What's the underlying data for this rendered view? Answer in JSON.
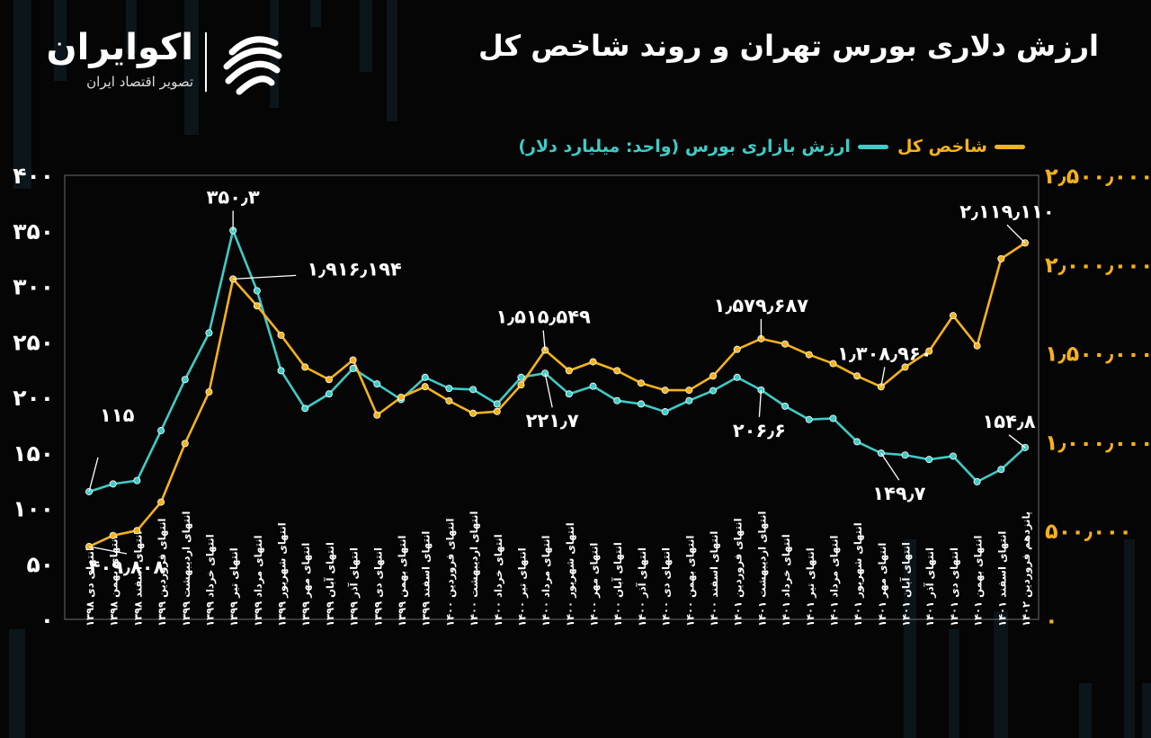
{
  "title": "ارزش دلاری بورس تهران و روند شاخص کل",
  "brand": {
    "name": "اکوایران",
    "tagline": "تصویر اقتصاد ایران"
  },
  "colors": {
    "index": "#F5B21A",
    "market_value": "#3FCBC6",
    "background": "#050505"
  },
  "legend": {
    "index_label": "شاخص کل",
    "market_label": "ارزش بازاری بورس (واحد: میلیارد دلار)"
  },
  "chart_data": {
    "type": "line",
    "categories": [
      "انتهای دی ۱۳۹۸",
      "انتهای بهمن ۱۳۹۸",
      "انتهای اسفند ۱۳۹۸",
      "انتهای فروردین ۱۳۹۹",
      "انتهای اردیبهشت ۱۳۹۹",
      "انتهای خرداد ۱۳۹۹",
      "انتهای تیر ۱۳۹۹",
      "انتهای مرداد ۱۳۹۹",
      "انتهای شهریور ۱۳۹۹",
      "انتهای مهر ۱۳۹۹",
      "انتهای آبان ۱۳۹۹",
      "انتهای آذر ۱۳۹۹",
      "انتهای دی ۱۳۹۹",
      "انتهای بهمن ۱۳۹۹",
      "انتهای اسفند ۱۳۹۹",
      "انتهای فروردین ۱۴۰۰",
      "انتهای اردیبهشت ۱۴۰۰",
      "انتهای خرداد ۱۴۰۰",
      "انتهای تیر ۱۴۰۰",
      "انتهای مرداد ۱۴۰۰",
      "انتهای شهریور ۱۴۰۰",
      "انتهای مهر ۱۴۰۰",
      "انتهای آبان ۱۴۰۰",
      "انتهای آذر ۱۴۰۰",
      "انتهای دی ۱۴۰۰",
      "انتهای بهمن ۱۴۰۰",
      "انتهای اسفند ۱۴۰۰",
      "انتهای فروردین ۱۴۰۱",
      "انتهای اردیبهشت ۱۴۰۱",
      "انتهای خرداد ۱۴۰۱",
      "انتهای تیر ۱۴۰۱",
      "انتهای مرداد ۱۴۰۱",
      "انتهای شهریور ۱۴۰۱",
      "انتهای مهر ۱۴۰۱",
      "انتهای آبان ۱۴۰۱",
      "انتهای آذر ۱۴۰۱",
      "انتهای دی ۱۴۰۱",
      "انتهای بهمن ۱۴۰۱",
      "انتهای اسفند ۱۴۰۱",
      "پانزدهم فروردین ۱۴۰۲"
    ],
    "series": [
      {
        "name": "ارزش بازاری بورس (واحد: میلیارد دلار)",
        "axis": "left",
        "values": [
          115,
          122,
          125,
          170,
          216,
          258,
          350.3,
          296,
          224,
          190,
          203,
          226,
          212,
          198,
          218,
          208,
          207,
          194,
          218,
          221.7,
          203,
          210,
          197,
          194,
          187,
          197,
          206,
          218,
          206.6,
          192,
          180,
          181,
          160,
          149.7,
          148,
          144,
          147,
          124,
          135,
          154.8
        ]
      },
      {
        "name": "شاخص کل",
        "axis": "right",
        "values": [
          409808,
          472000,
          500000,
          660000,
          990000,
          1280000,
          1916194,
          1765000,
          1600000,
          1420000,
          1350000,
          1460000,
          1150000,
          1250000,
          1310000,
          1230000,
          1160000,
          1170000,
          1320000,
          1515549,
          1400000,
          1450000,
          1400000,
          1330000,
          1290000,
          1290000,
          1370000,
          1520000,
          1579687,
          1550000,
          1490000,
          1440000,
          1370000,
          1308960,
          1420000,
          1510000,
          1710000,
          1540000,
          2030000,
          2119110
        ]
      }
    ],
    "left_axis": {
      "min": 0,
      "max": 400,
      "ticks": [
        "۰",
        "۵۰",
        "۱۰۰",
        "۱۵۰",
        "۲۰۰",
        "۲۵۰",
        "۳۰۰",
        "۳۵۰",
        "۴۰۰"
      ]
    },
    "right_axis": {
      "min": 0,
      "max": 2500000,
      "ticks": [
        "۰",
        "۵۰۰٫۰۰۰",
        "۱٫۰۰۰٫۰۰۰",
        "۱٫۵۰۰٫۰۰۰",
        "۲٫۰۰۰٫۰۰۰",
        "۲٫۵۰۰٫۰۰۰"
      ]
    },
    "annotations": [
      {
        "series": 0,
        "index": 0,
        "text": "۱۱۵"
      },
      {
        "series": 0,
        "index": 6,
        "text": "۳۵۰٫۳"
      },
      {
        "series": 0,
        "index": 19,
        "text": "۲۲۱٫۷"
      },
      {
        "series": 0,
        "index": 28,
        "text": "۲۰۶٫۶"
      },
      {
        "series": 0,
        "index": 33,
        "text": "۱۴۹٫۷"
      },
      {
        "series": 0,
        "index": 39,
        "text": "۱۵۴٫۸"
      },
      {
        "series": 1,
        "index": 0,
        "text": "۴۰۹٫۸۰۸"
      },
      {
        "series": 1,
        "index": 6,
        "text": "۱٫۹۱۶٫۱۹۴"
      },
      {
        "series": 1,
        "index": 19,
        "text": "۱٫۵۱۵٫۵۴۹"
      },
      {
        "series": 1,
        "index": 28,
        "text": "۱٫۵۷۹٫۶۸۷"
      },
      {
        "series": 1,
        "index": 33,
        "text": "۱٫۳۰۸٫۹۶۰"
      },
      {
        "series": 1,
        "index": 39,
        "text": "۲٫۱۱۹٫۱۱۰"
      }
    ],
    "grid": false,
    "legend_position": "top-right"
  }
}
